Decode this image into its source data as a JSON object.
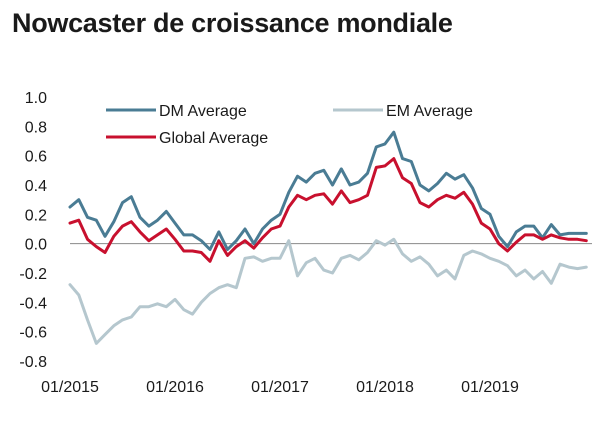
{
  "chart_data": {
    "type": "line",
    "title": "Nowcaster de croissance mondiale",
    "xlabel": "",
    "ylabel": "",
    "x_start": "2015-01",
    "x_step": "1 month",
    "xlim": [
      "2015-01",
      "2019-12"
    ],
    "ylim": [
      -0.8,
      1.0
    ],
    "y_ticks": [
      1.0,
      0.8,
      0.6,
      0.4,
      0.2,
      0.0,
      -0.2,
      -0.4,
      -0.6,
      -0.8
    ],
    "y_tick_labels": [
      "1.0",
      "0.8",
      "0.6",
      "0.4",
      "0.2",
      "0.0",
      "-0.2",
      "-0.4",
      "-0.6",
      "-0.8"
    ],
    "x_ticks": [
      "2015-01",
      "2016-01",
      "2017-01",
      "2018-01",
      "2019-01"
    ],
    "x_tick_labels": [
      "01/2015",
      "01/2016",
      "01/2017",
      "01/2018",
      "01/2019"
    ],
    "zero_line": true,
    "grid": false,
    "legend_position": "top",
    "series": [
      {
        "name": "DM Average",
        "color": "#4a7c94",
        "values": [
          0.25,
          0.3,
          0.18,
          0.16,
          0.05,
          0.15,
          0.28,
          0.32,
          0.18,
          0.12,
          0.16,
          0.22,
          0.14,
          0.06,
          0.06,
          0.02,
          -0.04,
          0.08,
          -0.04,
          0.02,
          0.1,
          0.0,
          0.1,
          0.16,
          0.2,
          0.35,
          0.46,
          0.42,
          0.48,
          0.5,
          0.4,
          0.51,
          0.4,
          0.42,
          0.48,
          0.66,
          0.68,
          0.76,
          0.58,
          0.56,
          0.4,
          0.36,
          0.41,
          0.48,
          0.44,
          0.47,
          0.38,
          0.24,
          0.2,
          0.05,
          -0.02,
          0.08,
          0.12,
          0.12,
          0.04,
          0.13,
          0.06,
          0.07,
          0.07,
          0.07
        ]
      },
      {
        "name": "EM Average",
        "color": "#b5c7ce",
        "values": [
          -0.28,
          -0.35,
          -0.52,
          -0.68,
          -0.62,
          -0.56,
          -0.52,
          -0.5,
          -0.43,
          -0.43,
          -0.41,
          -0.43,
          -0.38,
          -0.45,
          -0.48,
          -0.4,
          -0.34,
          -0.3,
          -0.28,
          -0.3,
          -0.1,
          -0.09,
          -0.12,
          -0.1,
          -0.1,
          0.02,
          -0.22,
          -0.13,
          -0.1,
          -0.18,
          -0.2,
          -0.1,
          -0.08,
          -0.11,
          -0.06,
          0.02,
          -0.01,
          0.03,
          -0.07,
          -0.12,
          -0.09,
          -0.14,
          -0.22,
          -0.18,
          -0.24,
          -0.08,
          -0.05,
          -0.07,
          -0.1,
          -0.12,
          -0.15,
          -0.22,
          -0.18,
          -0.24,
          -0.19,
          -0.27,
          -0.14,
          -0.16,
          -0.17,
          -0.16
        ]
      },
      {
        "name": "Global Average",
        "color": "#c8102e",
        "values": [
          0.14,
          0.16,
          0.03,
          -0.02,
          -0.06,
          0.05,
          0.12,
          0.15,
          0.08,
          0.02,
          0.06,
          0.1,
          0.03,
          -0.05,
          -0.05,
          -0.06,
          -0.12,
          0.02,
          -0.08,
          -0.02,
          0.02,
          -0.03,
          0.04,
          0.1,
          0.12,
          0.25,
          0.33,
          0.3,
          0.33,
          0.34,
          0.27,
          0.36,
          0.28,
          0.3,
          0.33,
          0.52,
          0.53,
          0.58,
          0.45,
          0.41,
          0.28,
          0.25,
          0.3,
          0.33,
          0.31,
          0.35,
          0.27,
          0.14,
          0.1,
          0.0,
          -0.05,
          0.01,
          0.06,
          0.06,
          0.03,
          0.06,
          0.04,
          0.03,
          0.03,
          0.02
        ]
      }
    ]
  }
}
